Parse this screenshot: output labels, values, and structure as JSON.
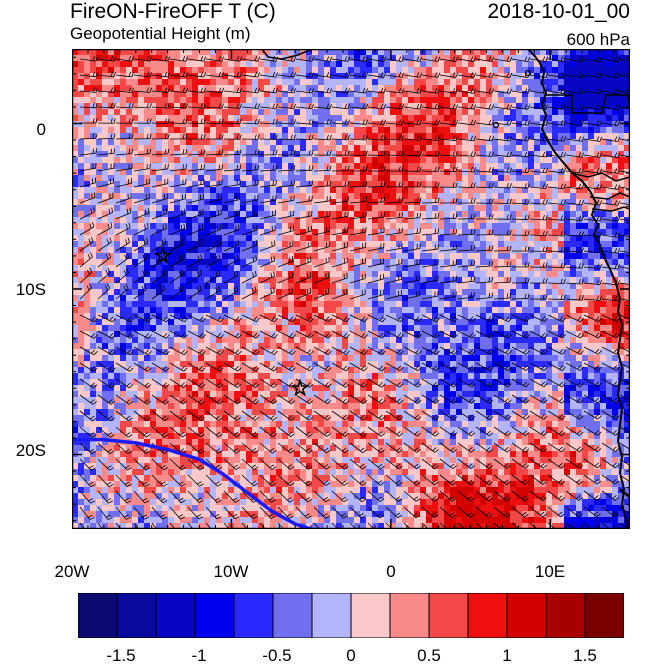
{
  "title": {
    "main": "FireON-FireOFF T (C)",
    "subtitle": "Geopotential Height (m)",
    "datetime": "2018-10-01_00",
    "level": "600 hPa"
  },
  "map": {
    "lon_range": [
      -20,
      15
    ],
    "lat_range": [
      -24.5,
      4.5
    ],
    "lat_ticks": [
      {
        "value": 0,
        "label": "0"
      },
      {
        "value": -10,
        "label": "10S"
      },
      {
        "value": -20,
        "label": "20S"
      }
    ],
    "lon_ticks": [
      {
        "value": -20,
        "label": "20W"
      },
      {
        "value": -10,
        "label": "10W"
      },
      {
        "value": 0,
        "label": "0"
      },
      {
        "value": 10,
        "label": "10E"
      }
    ],
    "markers": [
      {
        "name": "star-marker-1",
        "lon": -14.3,
        "lat": -8.0
      },
      {
        "name": "star-marker-2",
        "lon": -5.7,
        "lat": -16.0
      }
    ],
    "contour_line": {
      "color": "#1a1aff",
      "points": [
        [
          -20,
          -19.1
        ],
        [
          -18,
          -19.1
        ],
        [
          -16,
          -19.3
        ],
        [
          -14,
          -19.7
        ],
        [
          -12,
          -20.3
        ],
        [
          -10.5,
          -21.2
        ],
        [
          -9,
          -22.3
        ],
        [
          -7.5,
          -23.4
        ],
        [
          -6,
          -24.2
        ],
        [
          -5,
          -24.5
        ]
      ]
    }
  },
  "colorbar": {
    "colors": [
      "#0a0a70",
      "#0a0a9c",
      "#0606c4",
      "#0000ee",
      "#2a2aff",
      "#6f6ff0",
      "#b4b4fa",
      "#fac8c8",
      "#f88a8a",
      "#f24848",
      "#ee1010",
      "#d20000",
      "#a80000",
      "#7a0000"
    ],
    "labels": [
      "-1.5",
      "-1",
      "-0.5",
      "0",
      "0.5",
      "1",
      "1.5"
    ],
    "label_positions": [
      1,
      3,
      5,
      7,
      9,
      11,
      13
    ]
  }
}
